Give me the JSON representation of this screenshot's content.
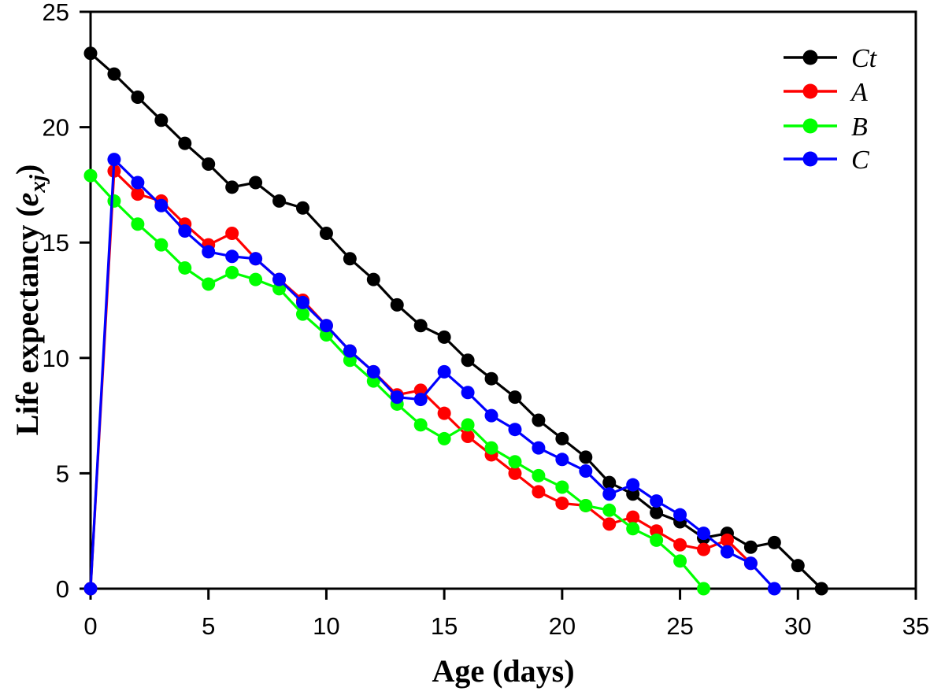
{
  "chart_data": {
    "type": "line",
    "title": "",
    "xlabel": "Age (days)",
    "ylabel_prefix": "Life expectancy (",
    "ylabel_var": "e",
    "ylabel_sub": "xj",
    "ylabel_suffix": ")",
    "xlim": [
      0,
      35
    ],
    "ylim": [
      0,
      25
    ],
    "x_ticks": [
      0,
      5,
      10,
      15,
      20,
      25,
      30,
      35
    ],
    "y_ticks": [
      0,
      5,
      10,
      15,
      20,
      25
    ],
    "grid": false,
    "legend_position": "top-right",
    "background_color": "#ffffff",
    "axis_color": "#000000",
    "series": [
      {
        "name": "Ct",
        "color": "#000000",
        "x_start": 0,
        "y": [
          23.2,
          22.3,
          21.3,
          20.3,
          19.3,
          18.4,
          17.4,
          17.6,
          16.8,
          16.5,
          15.4,
          14.3,
          13.4,
          12.3,
          11.4,
          10.9,
          9.9,
          9.1,
          8.3,
          7.3,
          6.5,
          5.7,
          4.6,
          4.1,
          3.3,
          2.9,
          2.2,
          2.4,
          1.8,
          2.0,
          1.0,
          0
        ]
      },
      {
        "name": "A",
        "color": "#ff0000",
        "x_start": 0,
        "y": [
          0,
          18.1,
          17.1,
          16.8,
          15.8,
          14.9,
          15.4,
          14.3,
          13.4,
          12.5,
          11.4,
          10.3,
          9.4,
          8.4,
          8.6,
          7.6,
          6.6,
          5.8,
          5.0,
          4.2,
          3.7,
          3.6,
          2.8,
          3.1,
          2.5,
          1.9,
          1.7,
          2.1,
          1.1
        ]
      },
      {
        "name": "B",
        "color": "#00ff00",
        "x_start": 0,
        "y": [
          17.9,
          16.8,
          15.8,
          14.9,
          13.9,
          13.2,
          13.7,
          13.4,
          13.0,
          11.9,
          11.0,
          9.9,
          9.0,
          8.0,
          7.1,
          6.5,
          7.1,
          6.1,
          5.5,
          4.9,
          4.4,
          3.6,
          3.4,
          2.6,
          2.1,
          1.2,
          0
        ]
      },
      {
        "name": "C",
        "color": "#0000ff",
        "x_start": 0,
        "y": [
          0,
          18.6,
          17.6,
          16.6,
          15.5,
          14.6,
          14.4,
          14.3,
          13.4,
          12.4,
          11.4,
          10.3,
          9.4,
          8.3,
          8.2,
          9.4,
          8.5,
          7.5,
          6.9,
          6.1,
          5.6,
          5.1,
          4.1,
          4.5,
          3.8,
          3.2,
          2.4,
          1.6,
          1.1,
          0
        ]
      }
    ]
  }
}
